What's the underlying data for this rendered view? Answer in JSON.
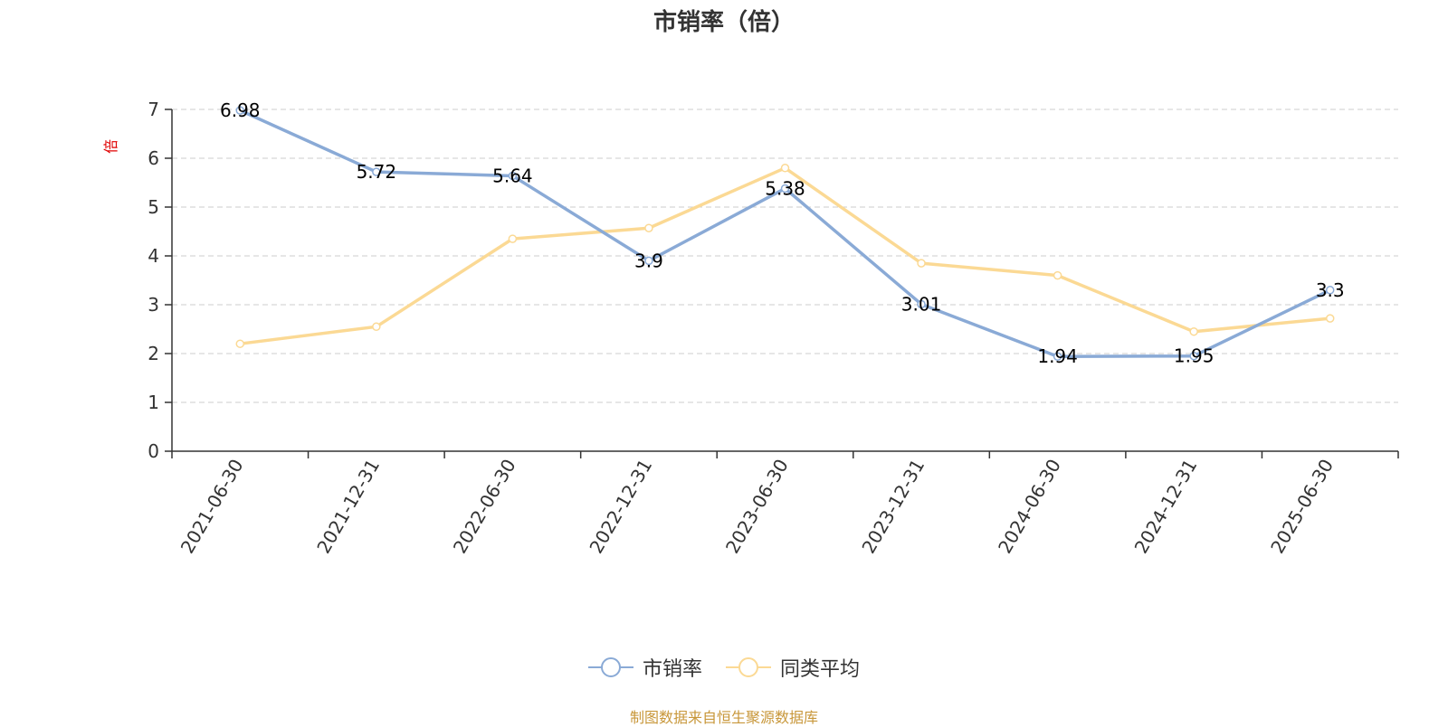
{
  "colors": {
    "series1": "#8aaad6",
    "series2": "#fbd994",
    "unit": "#e00000",
    "source": "#c8973a",
    "grid": "#cccccc",
    "axis": "#333333"
  },
  "chart_data": {
    "type": "line",
    "title": "市销率（倍）",
    "ylabel": "倍",
    "ylim": [
      0,
      7
    ],
    "yticks": [
      0,
      1,
      2,
      3,
      4,
      5,
      6,
      7
    ],
    "grid": true,
    "legend_position": "bottom-center",
    "categories": [
      "2021-06-30",
      "2021-12-31",
      "2022-06-30",
      "2022-12-31",
      "2023-06-30",
      "2023-12-31",
      "2024-06-30",
      "2024-12-31",
      "2025-06-30"
    ],
    "series": [
      {
        "name": "市销率",
        "values": [
          6.98,
          5.72,
          5.64,
          3.9,
          5.38,
          3.01,
          1.94,
          1.95,
          3.3
        ],
        "labels": [
          "6.98",
          "5.72",
          "5.64",
          "3.9",
          "5.38",
          "3.01",
          "1.94",
          "1.95",
          "3.3"
        ]
      },
      {
        "name": "同类平均",
        "values": [
          2.2,
          2.55,
          4.35,
          4.57,
          5.8,
          3.85,
          3.6,
          2.45,
          2.72
        ]
      }
    ]
  },
  "source": "制图数据来自恒生聚源数据库"
}
